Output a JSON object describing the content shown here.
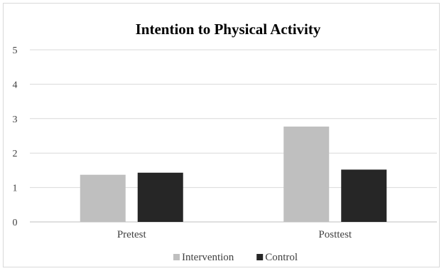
{
  "chart_data": {
    "type": "bar",
    "title": "Intention to Physical Activity",
    "categories": [
      "Pretest",
      "Posttest"
    ],
    "series": [
      {
        "name": "Intervention",
        "values": [
          1.37,
          2.77
        ],
        "color": "#bfbfbf"
      },
      {
        "name": "Control",
        "values": [
          1.43,
          1.52
        ],
        "color": "#262626"
      }
    ],
    "ylim": [
      0,
      5
    ],
    "yticks": [
      "0",
      "1",
      "2",
      "3",
      "4",
      "5"
    ],
    "xlabel": "",
    "ylabel": "",
    "grid": true,
    "legend_position": "bottom"
  }
}
